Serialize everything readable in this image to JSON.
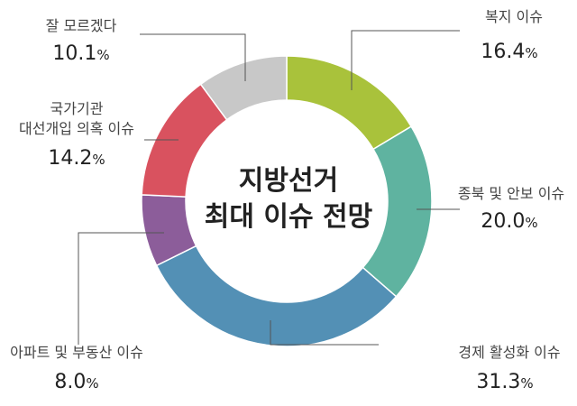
{
  "chart_data": {
    "type": "pie",
    "donut": true,
    "center_title": [
      "지방선거",
      "최대 이슈 전망"
    ],
    "unit": "%",
    "slices": [
      {
        "label": "복지 이슈",
        "value": 16.4,
        "color": "#a9c23b"
      },
      {
        "label": "종북 및 안보 이슈",
        "value": 20.0,
        "color": "#5fb3a0"
      },
      {
        "label": "경제 활성화 이슈",
        "value": 31.3,
        "color": "#5390b5"
      },
      {
        "label": "아파트 및 부동산 이슈",
        "value": 8.0,
        "color": "#8c5d9a"
      },
      {
        "label": "국가기관 대선개입 의혹 이슈",
        "label_lines": [
          "국가기관",
          "대선개입 의혹 이슈"
        ],
        "value": 14.2,
        "color": "#d9525f"
      },
      {
        "label": "잘 모르겠다",
        "value": 10.1,
        "color": "#c8c8c8"
      }
    ]
  }
}
